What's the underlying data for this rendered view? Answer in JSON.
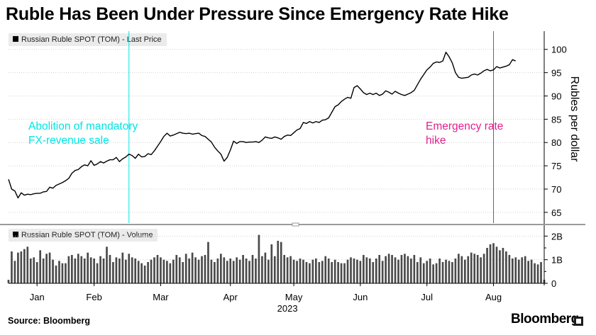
{
  "title": "Ruble Has Been Under Pressure Since Emergency Rate Hike",
  "source": "Source: Bloomberg",
  "logo": "Bloomberg",
  "chart_data": [
    {
      "type": "line",
      "legend": "Russian Ruble SPOT (TOM) - Last Price",
      "ylabel": "Rubles per dollar",
      "ylim": [
        63,
        103
      ],
      "yticks": [
        65,
        70,
        75,
        80,
        85,
        90,
        95,
        100
      ],
      "xlim": [
        0,
        169
      ],
      "annotations": [
        {
          "text": [
            "Abolition of mandatory",
            "FX-revenue sale"
          ],
          "color": "#00e5e5",
          "x": 38
        },
        {
          "text": [
            "Emergency rate",
            "hike"
          ],
          "color": "#e0208e",
          "x": 153
        }
      ],
      "series": [
        {
          "values": [
            72.1,
            70.0,
            69.6,
            68.1,
            69.2,
            68.7,
            68.9,
            68.8,
            69.0,
            69.1,
            69.1,
            69.4,
            69.5,
            70.4,
            70.2,
            70.8,
            71.1,
            71.4,
            71.8,
            72.3,
            73.4,
            74.0,
            74.2,
            74.8,
            75.2,
            75.0,
            76.1,
            75.1,
            75.4,
            75.9,
            75.6,
            76.0,
            76.3,
            76.3,
            76.8,
            75.9,
            76.5,
            76.9,
            77.5,
            77.2,
            76.6,
            77.5,
            76.9,
            77.0,
            77.6,
            77.4,
            78.2,
            79.2,
            80.2,
            81.3,
            82.0,
            81.4,
            81.6,
            81.9,
            82.2,
            82.0,
            81.9,
            82.0,
            81.8,
            81.9,
            82.0,
            81.5,
            81.3,
            80.7,
            80.1,
            79.0,
            78.2,
            77.5,
            76.0,
            76.8,
            78.4,
            80.3,
            79.8,
            80.2,
            80.2,
            80.0,
            80.1,
            80.1,
            80.2,
            80.0,
            80.5,
            81.2,
            81.0,
            80.9,
            81.2,
            81.0,
            80.7,
            81.3,
            81.6,
            81.5,
            82.1,
            82.7,
            83.0,
            84.3,
            84.1,
            84.5,
            84.2,
            84.5,
            84.3,
            84.8,
            84.9,
            85.3,
            86.5,
            87.7,
            88.1,
            88.8,
            89.3,
            89.7,
            89.5,
            91.8,
            92.2,
            91.5,
            90.7,
            90.3,
            90.6,
            90.3,
            90.6,
            90.1,
            90.4,
            91.1,
            90.8,
            90.4,
            91.0,
            90.6,
            90.3,
            90.1,
            90.4,
            90.7,
            91.2,
            92.4,
            93.6,
            94.6,
            95.6,
            96.2,
            97.0,
            97.3,
            97.2,
            97.5,
            99.4,
            98.4,
            97.1,
            95.0,
            94.0,
            93.8,
            93.9,
            94.0,
            94.5,
            94.7,
            94.5,
            94.9,
            95.4,
            95.7,
            95.4,
            95.6,
            96.3,
            96.0,
            96.2,
            96.4,
            96.7,
            97.8,
            97.5
          ]
        }
      ]
    },
    {
      "type": "bar",
      "legend": "Russian Ruble SPOT (TOM) - Volume",
      "ylim": [
        0,
        2.4
      ],
      "yticks": [
        0,
        1,
        2
      ],
      "ytick_labels": [
        "0",
        "1B",
        "2B"
      ],
      "xlim": [
        0,
        169
      ],
      "xticks": [
        {
          "label": "Jan",
          "x": 9
        },
        {
          "label": "Feb",
          "x": 27
        },
        {
          "label": "Mar",
          "x": 48
        },
        {
          "label": "Apr",
          "x": 70
        },
        {
          "label": "May",
          "x": 90
        },
        {
          "label": "Jun",
          "x": 111
        },
        {
          "label": "Jul",
          "x": 132
        },
        {
          "label": "Aug",
          "x": 153
        }
      ],
      "year_label": "2023",
      "year_x": 88,
      "series": [
        {
          "values": [
            0.15,
            1.35,
            0.95,
            1.3,
            1.35,
            1.45,
            1.55,
            1.05,
            1.1,
            0.9,
            1.4,
            1.05,
            1.25,
            1.3,
            1.0,
            0.75,
            0.95,
            0.85,
            0.85,
            1.15,
            1.2,
            1.05,
            1.25,
            1.15,
            1.05,
            1.3,
            1.1,
            1.05,
            0.85,
            1.15,
            1.05,
            1.55,
            1.2,
            0.9,
            1.1,
            1.05,
            1.3,
            1.0,
            1.25,
            1.1,
            1.05,
            0.95,
            0.85,
            0.75,
            0.9,
            1.0,
            1.1,
            1.2,
            1.1,
            1.0,
            0.95,
            0.85,
            1.0,
            1.2,
            1.1,
            0.9,
            1.25,
            1.05,
            1.3,
            1.1,
            1.0,
            1.15,
            1.2,
            1.75,
            1.0,
            0.9,
            1.05,
            1.25,
            1.1,
            0.95,
            1.05,
            0.95,
            1.1,
            1.0,
            1.2,
            1.05,
            0.95,
            1.2,
            1.05,
            2.05,
            1.15,
            1.3,
            1.0,
            1.65,
            1.15,
            1.8,
            1.75,
            1.2,
            1.1,
            1.15,
            1.0,
            0.95,
            1.05,
            1.0,
            0.9,
            0.85,
            1.0,
            1.05,
            0.9,
            0.95,
            1.15,
            1.05,
            0.9,
            1.0,
            0.9,
            0.85,
            0.85,
            1.0,
            1.1,
            1.05,
            1.0,
            0.95,
            1.2,
            1.1,
            1.05,
            0.9,
            1.05,
            1.2,
            0.95,
            1.15,
            1.25,
            1.2,
            1.1,
            1.0,
            1.2,
            1.25,
            1.15,
            1.05,
            1.2,
            0.9,
            1.1,
            0.85,
            0.95,
            1.05,
            0.8,
            0.85,
            1.05,
            0.9,
            1.0,
            0.95,
            0.9,
            1.05,
            1.25,
            1.15,
            1.0,
            1.15,
            1.3,
            1.25,
            1.2,
            1.1,
            1.25,
            1.5,
            1.65,
            1.7,
            1.55,
            1.4,
            1.5,
            1.35,
            1.2,
            1.05,
            1.1,
            1.0,
            1.1,
            1.15,
            0.95,
            1.0,
            0.85,
            0.8,
            0.9,
            0.15
          ]
        }
      ]
    }
  ]
}
